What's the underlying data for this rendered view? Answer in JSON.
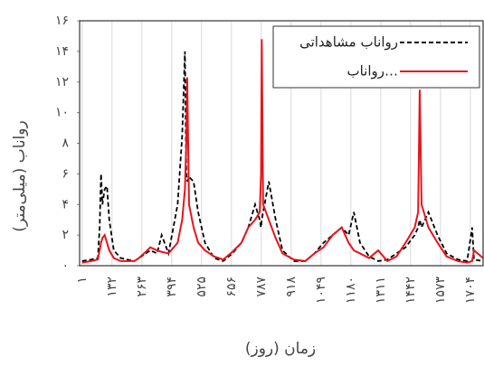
{
  "chart_data": {
    "type": "line",
    "y_label": "رواناب (میلی‌متر)",
    "x_label": "زمان (روز)",
    "x": [
      1,
      40,
      70,
      78,
      84,
      90,
      100,
      110,
      120,
      140,
      170,
      200,
      230,
      250,
      280,
      300,
      330,
      350,
      380,
      420,
      440,
      452,
      458,
      462,
      470,
      490,
      510,
      540,
      580,
      620,
      660,
      700,
      730,
      760,
      780,
      786,
      789,
      795,
      820,
      850,
      880,
      930,
      980,
      1020,
      1060,
      1100,
      1140,
      1170,
      1193,
      1220,
      1260,
      1300,
      1340,
      1380,
      1420,
      1460,
      1475,
      1482,
      1490,
      1520,
      1560,
      1600,
      1650,
      1690,
      1712,
      1720,
      1760
    ],
    "series": [
      {
        "name": "رواناب مشاهداتی",
        "color": "#000000",
        "linestyle": "dashed",
        "values": [
          0.3,
          0.4,
          0.5,
          2.5,
          6.0,
          4.0,
          5.0,
          5.2,
          3.0,
          1.0,
          0.5,
          0.4,
          0.3,
          0.5,
          0.8,
          1.0,
          0.8,
          2.0,
          0.8,
          4.0,
          8.5,
          14.0,
          6.0,
          5.5,
          5.8,
          5.5,
          3.5,
          1.5,
          0.5,
          0.3,
          0.8,
          1.5,
          2.5,
          4.0,
          3.0,
          2.5,
          3.0,
          3.5,
          5.5,
          3.0,
          1.0,
          0.3,
          0.3,
          0.8,
          1.5,
          2.0,
          2.5,
          2.0,
          3.5,
          1.5,
          0.6,
          0.3,
          0.4,
          0.8,
          1.2,
          2.0,
          2.5,
          3.0,
          2.5,
          3.5,
          2.0,
          0.8,
          0.4,
          0.3,
          2.5,
          0.4,
          0.3
        ]
      },
      {
        "name": "رواناب…",
        "color": "#e8141b",
        "linestyle": "solid",
        "values": [
          0.2,
          0.3,
          0.4,
          1.0,
          1.5,
          1.8,
          2.0,
          1.5,
          1.0,
          0.5,
          0.3,
          0.3,
          0.3,
          0.5,
          0.9,
          1.2,
          1.0,
          0.9,
          0.8,
          1.5,
          3.0,
          5.0,
          8.0,
          12.3,
          4.0,
          2.5,
          1.5,
          1.0,
          0.6,
          0.4,
          0.9,
          1.5,
          2.5,
          3.0,
          3.5,
          6.0,
          14.8,
          4.0,
          3.0,
          1.8,
          0.8,
          0.4,
          0.3,
          0.8,
          1.2,
          2.0,
          2.5,
          1.5,
          1.0,
          0.8,
          0.5,
          1.0,
          0.3,
          0.6,
          1.5,
          2.5,
          3.5,
          11.5,
          4.0,
          2.5,
          1.5,
          0.6,
          0.3,
          0.2,
          0.3,
          1.0,
          0.5
        ]
      }
    ],
    "xlim": [
      -10,
      1760
    ],
    "ylim": [
      0,
      16
    ],
    "xticks": [
      {
        "value": 1,
        "label": "۱"
      },
      {
        "value": 132,
        "label": "۱۳۲"
      },
      {
        "value": 263,
        "label": "۲۶۳"
      },
      {
        "value": 394,
        "label": "۳۹۴"
      },
      {
        "value": 525,
        "label": "۵۲۵"
      },
      {
        "value": 656,
        "label": "۶۵۶"
      },
      {
        "value": 787,
        "label": "۷۸۷"
      },
      {
        "value": 918,
        "label": "۹۱۸"
      },
      {
        "value": 1049,
        "label": "۱۰۴۹"
      },
      {
        "value": 1180,
        "label": "۱۱۸۰"
      },
      {
        "value": 1311,
        "label": "۱۳۱۱"
      },
      {
        "value": 1442,
        "label": "۱۴۴۲"
      },
      {
        "value": 1573,
        "label": "۱۵۷۳"
      },
      {
        "value": 1704,
        "label": "۱۷۰۴"
      }
    ],
    "yticks": [
      {
        "value": 0,
        "label": "۰"
      },
      {
        "value": 2,
        "label": "۲"
      },
      {
        "value": 4,
        "label": "۴"
      },
      {
        "value": 6,
        "label": "۶"
      },
      {
        "value": 8,
        "label": "۸"
      },
      {
        "value": 10,
        "label": "۱۰"
      },
      {
        "value": 12,
        "label": "۱۲"
      },
      {
        "value": 14,
        "label": "۱۴"
      },
      {
        "value": 16,
        "label": "۱۶"
      }
    ],
    "grid": true,
    "legend": "upper right"
  }
}
